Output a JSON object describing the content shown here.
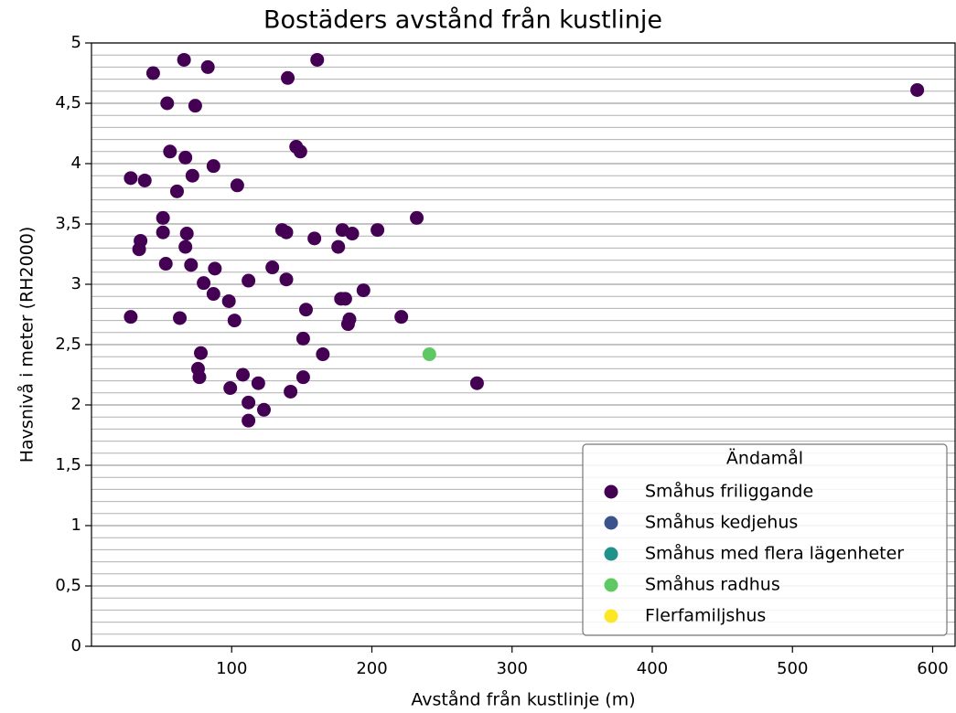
{
  "chart_data": {
    "type": "scatter",
    "title": "Bostäders avstånd från kustlinje",
    "xlabel": "Avstånd från kustlinje (m)",
    "ylabel": "Havsnivå i meter (RH2000)",
    "legend_title": "Ändamål",
    "legend": "lower right",
    "grid": true,
    "minor_grid_step": 0.1,
    "xlim": [
      0,
      616
    ],
    "ylim": [
      0,
      5
    ],
    "xticks": [
      100,
      200,
      300,
      400,
      500,
      600
    ],
    "yticks": [
      0,
      {
        "value": 0.5,
        "label": "0,5"
      },
      1,
      {
        "value": 1.5,
        "label": "1,5"
      },
      2,
      {
        "value": 2.5,
        "label": "2,5"
      },
      3,
      {
        "value": 3.5,
        "label": "3,5"
      },
      4,
      {
        "value": 4.5,
        "label": "4,5"
      },
      5
    ],
    "series": [
      {
        "name": "Småhus friliggande",
        "color": "#440154",
        "x": [
          44,
          66,
          83,
          161,
          140,
          54,
          74,
          589,
          56,
          67,
          146,
          149,
          28,
          38,
          72,
          87,
          61,
          104,
          51,
          51,
          68,
          35,
          34,
          67,
          136,
          139,
          159,
          179,
          186,
          176,
          204,
          232,
          53,
          71,
          88,
          129,
          112,
          139,
          80,
          87,
          98,
          194,
          178,
          181,
          153,
          28,
          63,
          102,
          184,
          183,
          221,
          151,
          165,
          78,
          76,
          77,
          108,
          119,
          151,
          99,
          142,
          112,
          123,
          112,
          275
        ],
        "values": [
          4.75,
          4.86,
          4.8,
          4.86,
          4.71,
          4.5,
          4.48,
          4.61,
          4.1,
          4.05,
          4.14,
          4.1,
          3.88,
          3.86,
          3.9,
          3.98,
          3.77,
          3.82,
          3.55,
          3.43,
          3.42,
          3.36,
          3.29,
          3.31,
          3.45,
          3.43,
          3.38,
          3.45,
          3.42,
          3.31,
          3.45,
          3.55,
          3.17,
          3.16,
          3.13,
          3.14,
          3.03,
          3.04,
          3.01,
          2.92,
          2.86,
          2.95,
          2.88,
          2.88,
          2.79,
          2.73,
          2.72,
          2.7,
          2.71,
          2.67,
          2.73,
          2.55,
          2.42,
          2.43,
          2.3,
          2.23,
          2.25,
          2.18,
          2.23,
          2.14,
          2.11,
          2.02,
          1.96,
          1.87,
          2.18
        ]
      },
      {
        "name": "Småhus kedjehus",
        "color": "#3b528b",
        "x": [],
        "values": []
      },
      {
        "name": "Småhus med flera lägenheter",
        "color": "#21918c",
        "x": [],
        "values": []
      },
      {
        "name": "Småhus radhus",
        "color": "#5ec962",
        "x": [
          241
        ],
        "values": [
          2.42
        ]
      },
      {
        "name": "Flerfamiljshus",
        "color": "#fde725",
        "x": [],
        "values": []
      }
    ]
  }
}
